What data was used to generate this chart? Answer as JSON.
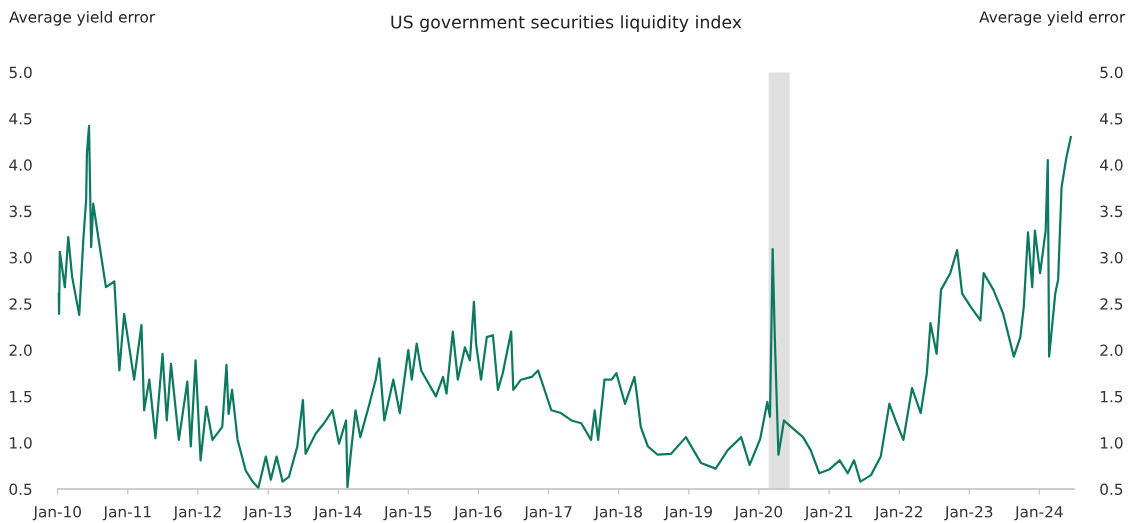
{
  "chart_data": {
    "type": "line",
    "title": "US government securities liquidity index",
    "ylabel": "Average yield error",
    "y2label": "Average yield error",
    "x": [
      "2010-01-01",
      "2010-01-08",
      "2010-01-12",
      "2010-02-07",
      "2010-02-25",
      "2010-03-17",
      "2010-04-23",
      "2010-05-14",
      "2010-05-29",
      "2010-06-02",
      "2010-06-13",
      "2010-06-24",
      "2010-07-05",
      "2010-08-03",
      "2010-09-09",
      "2010-10-23",
      "2010-11-18",
      "2010-12-13",
      "2011-02-03",
      "2011-03-13",
      "2011-03-27",
      "2011-04-23",
      "2011-05-25",
      "2011-07-01",
      "2011-07-23",
      "2011-08-14",
      "2011-09-24",
      "2011-11-07",
      "2011-11-25",
      "2011-12-20",
      "2012-01-15",
      "2012-02-14",
      "2012-03-17",
      "2012-05-07",
      "2012-05-29",
      "2012-06-09",
      "2012-06-27",
      "2012-07-26",
      "2012-09-06",
      "2012-10-12",
      "2012-11-11",
      "2012-12-20",
      "2013-01-15",
      "2013-02-14",
      "2013-03-17",
      "2013-04-19",
      "2013-06-02",
      "2013-07-01",
      "2013-07-15",
      "2013-09-06",
      "2013-10-19",
      "2013-12-02",
      "2014-01-05",
      "2014-02-11",
      "2014-02-18",
      "2014-03-06",
      "2014-04-01",
      "2014-04-26",
      "2014-06-09",
      "2014-07-15",
      "2014-08-03",
      "2014-08-29",
      "2014-10-15",
      "2014-11-18",
      "2015-01-01",
      "2015-01-19",
      "2015-02-14",
      "2015-03-09",
      "2015-05-25",
      "2015-07-01",
      "2015-07-19",
      "2015-08-21",
      "2015-09-16",
      "2015-10-23",
      "2015-11-18",
      "2015-12-09",
      "2015-12-20",
      "2016-01-15",
      "2016-02-14",
      "2016-03-17",
      "2016-04-12",
      "2016-05-07",
      "2016-06-20",
      "2016-07-01",
      "2016-08-10",
      "2016-10-05",
      "2016-11-07",
      "2017-01-15",
      "2017-03-06",
      "2017-04-30",
      "2017-06-20",
      "2017-08-10",
      "2017-08-29",
      "2017-09-16",
      "2017-10-19",
      "2017-11-25",
      "2017-12-20",
      "2018-02-03",
      "2018-03-24",
      "2018-04-05",
      "2018-04-26",
      "2018-06-02",
      "2018-07-23",
      "2018-10-01",
      "2018-12-17",
      "2019-03-06",
      "2019-05-21",
      "2019-07-23",
      "2019-10-01",
      "2019-11-14",
      "2020-01-08",
      "2020-02-14",
      "2020-02-28",
      "2020-03-13",
      "2020-03-24",
      "2020-04-12",
      "2020-05-11",
      "2020-06-17",
      "2020-08-18",
      "2020-09-27",
      "2020-11-11",
      "2021-01-01",
      "2021-02-25",
      "2021-04-08",
      "2021-05-11",
      "2021-06-13",
      "2021-08-07",
      "2021-09-27",
      "2021-11-11",
      "2021-12-13",
      "2022-01-23",
      "2022-03-09",
      "2022-04-23",
      "2022-05-25",
      "2022-06-13",
      "2022-07-15",
      "2022-08-07",
      "2022-09-24",
      "2022-10-30",
      "2022-11-25",
      "2023-01-08",
      "2023-02-28",
      "2023-03-17",
      "2023-05-07",
      "2023-06-27",
      "2023-08-21",
      "2023-09-24",
      "2023-10-12",
      "2023-11-03",
      "2023-11-25",
      "2023-12-09",
      "2024-01-05",
      "2024-02-03",
      "2024-02-14",
      "2024-02-21",
      "2024-03-24",
      "2024-04-08",
      "2024-04-26",
      "2024-05-21",
      "2024-06-13"
    ],
    "series": [
      {
        "color": "#0d7a5f",
        "values": [
          2.61,
          2.39,
          3.06,
          2.68,
          3.22,
          2.79,
          2.38,
          3.18,
          3.62,
          4.12,
          4.42,
          3.11,
          3.58,
          3.18,
          2.68,
          2.74,
          1.78,
          2.39,
          1.68,
          2.27,
          1.35,
          1.68,
          1.05,
          1.96,
          1.24,
          1.85,
          1.03,
          1.66,
          0.96,
          1.89,
          0.81,
          1.39,
          1.03,
          1.17,
          1.84,
          1.31,
          1.57,
          1.03,
          0.7,
          0.58,
          0.51,
          0.85,
          0.6,
          0.85,
          0.58,
          0.63,
          0.96,
          1.46,
          0.88,
          1.1,
          1.21,
          1.35,
          0.99,
          1.24,
          0.52,
          0.85,
          1.35,
          1.06,
          1.39,
          1.68,
          1.91,
          1.24,
          1.68,
          1.32,
          2.0,
          1.68,
          2.07,
          1.78,
          1.5,
          1.71,
          1.53,
          2.2,
          1.68,
          2.03,
          1.89,
          2.52,
          2.07,
          1.68,
          2.14,
          2.16,
          1.57,
          1.75,
          2.2,
          1.57,
          1.68,
          1.71,
          1.78,
          1.35,
          1.32,
          1.24,
          1.21,
          1.03,
          1.35,
          1.03,
          1.68,
          1.68,
          1.75,
          1.42,
          1.71,
          1.53,
          1.17,
          0.96,
          0.87,
          0.88,
          1.06,
          0.78,
          0.72,
          0.92,
          1.06,
          0.76,
          1.04,
          1.44,
          1.28,
          3.09,
          2.14,
          0.87,
          1.24,
          1.17,
          1.06,
          0.92,
          0.67,
          0.71,
          0.81,
          0.67,
          0.81,
          0.58,
          0.65,
          0.85,
          1.42,
          1.24,
          1.03,
          1.59,
          1.32,
          1.75,
          2.29,
          1.96,
          2.65,
          2.83,
          3.08,
          2.61,
          2.47,
          2.32,
          2.83,
          2.65,
          2.39,
          1.93,
          2.14,
          2.47,
          3.27,
          2.68,
          3.29,
          2.83,
          3.29,
          4.05,
          1.93,
          2.61,
          2.76,
          3.76,
          4.08,
          4.3
        ]
      }
    ],
    "xlim": [
      "2010-01-01",
      "2024-07-01"
    ],
    "xticks": [
      {
        "value": "2010-01-01",
        "label": "Jan-10"
      },
      {
        "value": "2011-01-01",
        "label": "Jan-11"
      },
      {
        "value": "2012-01-01",
        "label": "Jan-12"
      },
      {
        "value": "2013-01-01",
        "label": "Jan-13"
      },
      {
        "value": "2014-01-01",
        "label": "Jan-14"
      },
      {
        "value": "2015-01-01",
        "label": "Jan-15"
      },
      {
        "value": "2016-01-01",
        "label": "Jan-16"
      },
      {
        "value": "2017-01-01",
        "label": "Jan-17"
      },
      {
        "value": "2018-01-01",
        "label": "Jan-18"
      },
      {
        "value": "2019-01-01",
        "label": "Jan-19"
      },
      {
        "value": "2020-01-01",
        "label": "Jan-20"
      },
      {
        "value": "2021-01-01",
        "label": "Jan-21"
      },
      {
        "value": "2022-01-01",
        "label": "Jan-22"
      },
      {
        "value": "2023-01-01",
        "label": "Jan-23"
      },
      {
        "value": "2024-01-01",
        "label": "Jan-24"
      }
    ],
    "ylim": [
      0.5,
      5.0
    ],
    "yticks": [
      {
        "value": 0.5,
        "label": "0.5"
      },
      {
        "value": 1.0,
        "label": "1.0"
      },
      {
        "value": 1.5,
        "label": "1.5"
      },
      {
        "value": 2.0,
        "label": "2.0"
      },
      {
        "value": 2.5,
        "label": "2.5"
      },
      {
        "value": 3.0,
        "label": "3.0"
      },
      {
        "value": 3.5,
        "label": "3.5"
      },
      {
        "value": 4.0,
        "label": "4.0"
      },
      {
        "value": 4.5,
        "label": "4.5"
      },
      {
        "value": 5.0,
        "label": "5.0"
      }
    ],
    "y2lim": [
      0.5,
      5.0
    ],
    "y2ticks": [
      {
        "value": 0.5,
        "label": "0.5"
      },
      {
        "value": 1.0,
        "label": "1.0"
      },
      {
        "value": 1.5,
        "label": "1.5"
      },
      {
        "value": 2.0,
        "label": "2.0"
      },
      {
        "value": 2.5,
        "label": "2.5"
      },
      {
        "value": 3.0,
        "label": "3.0"
      },
      {
        "value": 3.5,
        "label": "3.5"
      },
      {
        "value": 4.0,
        "label": "4.0"
      },
      {
        "value": 4.5,
        "label": "4.5"
      },
      {
        "value": 5.0,
        "label": "5.0"
      }
    ],
    "bands": [
      {
        "axis": "x",
        "from": "2020-02-21",
        "to": "2020-06-10",
        "color": "#e0e0e0"
      }
    ],
    "grid": false,
    "marker": "none",
    "line_style": "solid"
  }
}
